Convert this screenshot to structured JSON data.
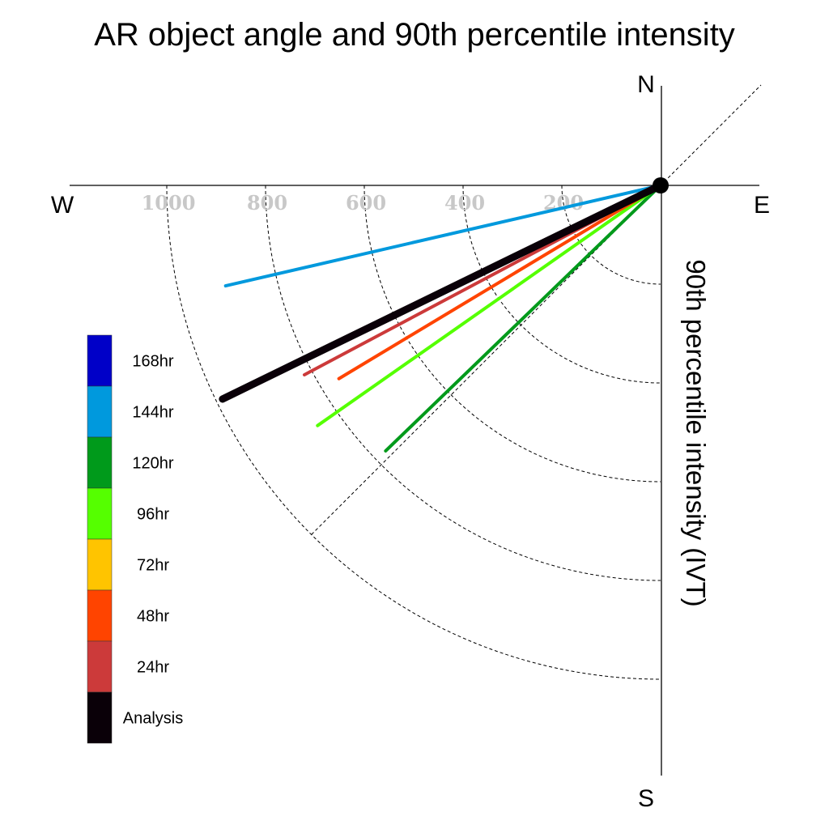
{
  "chart_data": {
    "type": "polar-vector",
    "title": "AR object angle and 90th percentile intensity",
    "ylabel": "90th percentile intensity (IVT)",
    "compass": {
      "north": "N",
      "south": "S",
      "east": "E",
      "west": "W"
    },
    "radial_ticks": [
      "200",
      "400",
      "600",
      "800",
      "1000"
    ],
    "radial_tick_values": [
      200,
      400,
      600,
      800,
      1000
    ],
    "rlim": [
      0,
      1200
    ],
    "grid": true,
    "legend_position": "left",
    "series": [
      {
        "name": "Analysis",
        "color": "#0a0008",
        "intensity": 987,
        "angle_below_west": 26
      },
      {
        "name": "24hr",
        "color": "#cc3a3a",
        "intensity": 817,
        "angle_below_west": 28
      },
      {
        "name": "48hr",
        "color": "#ff4400",
        "intensity": 760,
        "angle_below_west": 31
      },
      {
        "name": "96hr",
        "color": "#55ff00",
        "intensity": 848,
        "angle_below_west": 35
      },
      {
        "name": "120hr",
        "color": "#009a1b",
        "intensity": 774,
        "angle_below_west": 44
      },
      {
        "name": "144hr",
        "color": "#0099dd",
        "intensity": 904,
        "angle_below_west": 13
      }
    ],
    "legend": [
      {
        "name": "168hr",
        "color": "#0000c8"
      },
      {
        "name": "144hr",
        "color": "#0099dd"
      },
      {
        "name": "120hr",
        "color": "#009a1b"
      },
      {
        "name": "96hr",
        "color": "#55ff00"
      },
      {
        "name": "72hr",
        "color": "#ffc400"
      },
      {
        "name": "48hr",
        "color": "#ff4400"
      },
      {
        "name": "24hr",
        "color": "#cc3a3a"
      },
      {
        "name": "Analysis",
        "color": "#0a0008"
      }
    ]
  }
}
